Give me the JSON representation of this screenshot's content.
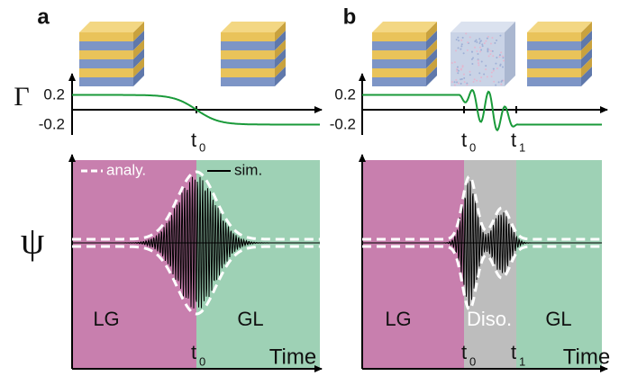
{
  "panels": [
    {
      "label": "a",
      "gamma_symbol": "Γ",
      "psi_symbol": "ψ",
      "gamma_ticks": [
        "0.2",
        "-0.2"
      ],
      "t0": {
        "base": "t",
        "sub": "0"
      },
      "t0_bottom": {
        "base": "t",
        "sub": "0"
      },
      "legend": [
        "analy.",
        "sim."
      ],
      "regions": [
        "LG",
        "GL"
      ],
      "x_label": "Time"
    },
    {
      "label": "b",
      "gamma_ticks": [
        "0.2",
        "-0.2"
      ],
      "t0": {
        "base": "t",
        "sub": "0"
      },
      "t1": {
        "base": "t",
        "sub": "1"
      },
      "t0_bottom": {
        "base": "t",
        "sub": "0"
      },
      "t1_bottom": {
        "base": "t",
        "sub": "1"
      },
      "regions": [
        "LG",
        "Diso.",
        "GL"
      ],
      "x_label": "Time"
    }
  ]
}
